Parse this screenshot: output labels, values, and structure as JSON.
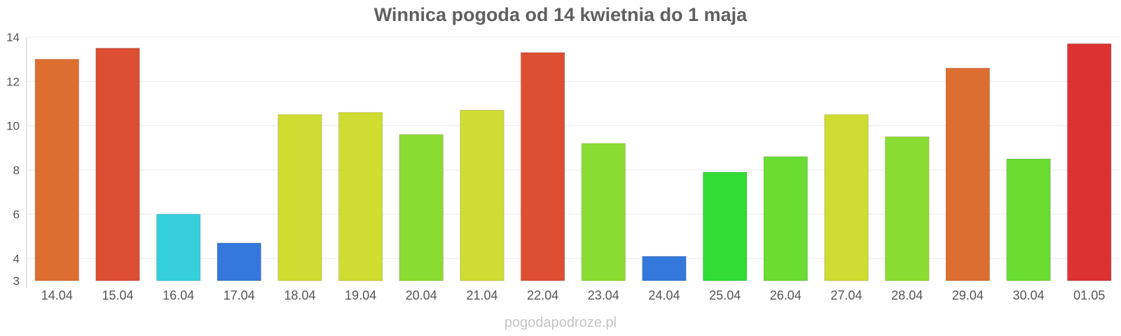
{
  "source_label": "pogodapodroze.pl",
  "chart_data": {
    "type": "bar",
    "title": "Winnica pogoda od 14 kwietnia do 1 maja",
    "xlabel": "",
    "ylabel": "",
    "ylim": [
      3,
      14
    ],
    "yticks": [
      3,
      4,
      6,
      8,
      10,
      12,
      14
    ],
    "grid": true,
    "categories": [
      "14.04",
      "15.04",
      "16.04",
      "17.04",
      "18.04",
      "19.04",
      "20.04",
      "21.04",
      "22.04",
      "23.04",
      "24.04",
      "25.04",
      "26.04",
      "27.04",
      "28.04",
      "29.04",
      "30.04",
      "01.05"
    ],
    "values": [
      13.0,
      13.5,
      6.0,
      4.7,
      10.5,
      10.6,
      9.6,
      10.7,
      13.3,
      9.2,
      4.1,
      7.9,
      8.6,
      10.5,
      9.5,
      12.6,
      8.5,
      13.7
    ],
    "colors": [
      "#dc6e32",
      "#dc4f32",
      "#35cfdc",
      "#3478dc",
      "#cfdc32",
      "#cfdc32",
      "#8bdc32",
      "#cfdc32",
      "#dc4f32",
      "#8bdc32",
      "#3478dc",
      "#32dc35",
      "#6adc32",
      "#cfdc32",
      "#8bdc32",
      "#dc6e32",
      "#6adc32",
      "#dc3232"
    ]
  }
}
